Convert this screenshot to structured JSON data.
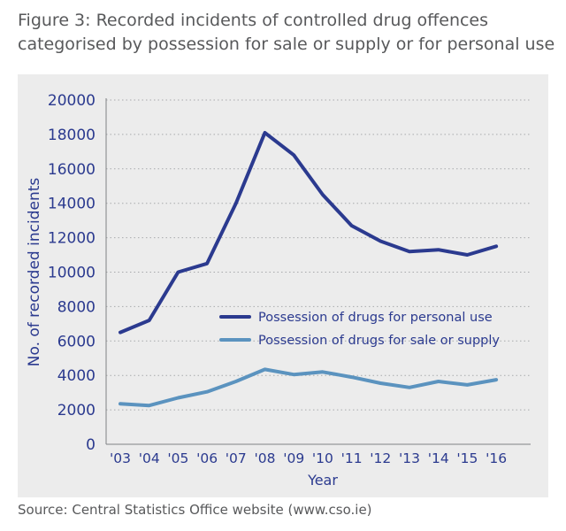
{
  "title_lines": [
    "Figure 3: Recorded incidents of controlled drug offences",
    "categorised by possession for sale or supply or for personal use"
  ],
  "source": "Source: Central Statistics Office website (www.cso.ie)",
  "chart_data": {
    "type": "line",
    "xlabel": "Year",
    "ylabel": "No. of recorded incidents",
    "categories": [
      "'03",
      "'04",
      "'05",
      "'06",
      "'07",
      "'08",
      "'09",
      "'10",
      "'11",
      "'12",
      "'13",
      "'14",
      "'15",
      "'16"
    ],
    "ylim": [
      0,
      20000
    ],
    "yticks": [
      0,
      2000,
      4000,
      6000,
      8000,
      10000,
      12000,
      14000,
      16000,
      18000,
      20000
    ],
    "grid": true,
    "legend_position": "center-right",
    "series": [
      {
        "name": "Possession of drugs for personal use",
        "color": "#2b3a8f",
        "values": [
          6500,
          7200,
          10000,
          10500,
          14000,
          18100,
          16800,
          14500,
          12700,
          11800,
          11200,
          11300,
          11000,
          11500
        ]
      },
      {
        "name": "Possession of drugs for sale or supply",
        "color": "#5b93bf",
        "values": [
          2350,
          2250,
          2700,
          3050,
          3650,
          4350,
          4050,
          4200,
          3900,
          3550,
          3300,
          3650,
          3450,
          3750
        ]
      }
    ]
  }
}
